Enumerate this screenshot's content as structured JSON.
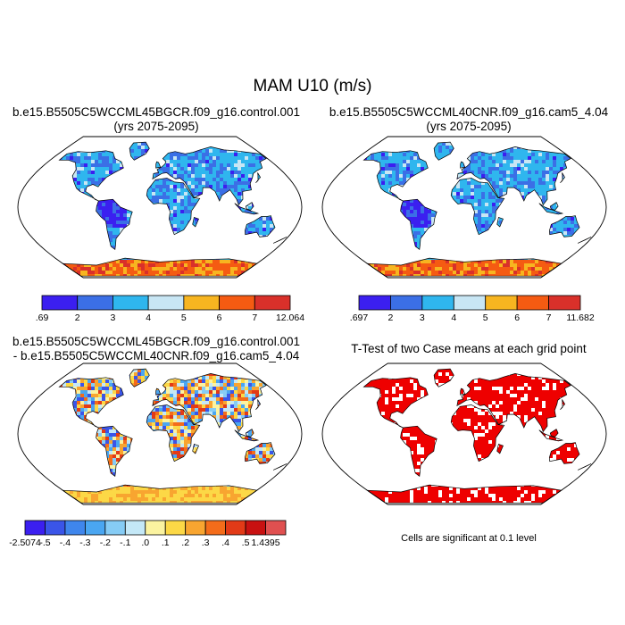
{
  "title": "MAM U10 (m/s)",
  "panels": [
    {
      "id": "control",
      "title_lines": [
        "b.e15.B5505C5WCCML45BGCR.f09_g16.control.001",
        "(yrs 2075-2095)"
      ],
      "colorbar": {
        "colors": [
          "#3b1ff0",
          "#3b6fe6",
          "#2fb6ee",
          "#c8e6f4",
          "#f7b520",
          "#f55b12",
          "#d9302a"
        ],
        "labels": [
          ".69",
          "2",
          "3",
          "4",
          "5",
          "6",
          "7",
          "12.064"
        ]
      }
    },
    {
      "id": "cam5",
      "title_lines": [
        "b.e15.B5505C5WCCML40CNR.f09_g16.cam5_4.04",
        "(yrs 2075-2095)"
      ],
      "colorbar": {
        "colors": [
          "#3b1ff0",
          "#3b6fe6",
          "#2fb6ee",
          "#c8e6f4",
          "#f7b520",
          "#f55b12",
          "#d9302a"
        ],
        "labels": [
          ".697",
          "2",
          "3",
          "4",
          "5",
          "6",
          "7",
          "11.682"
        ]
      }
    },
    {
      "id": "diff",
      "title_lines": [
        "b.e15.B5505C5WCCML45BGCR.f09_g16.control.001",
        "- b.e15.B5505C5WCCML40CNR.f09_g16.cam5_4.04"
      ],
      "colorbar": {
        "colors": [
          "#3b1ff0",
          "#3a55e8",
          "#3f86ec",
          "#4aa6f1",
          "#86ccf5",
          "#c4e8f7",
          "#fbf3a0",
          "#fcd846",
          "#f8a530",
          "#f46c1a",
          "#e23a17",
          "#c81111",
          "#e05050"
        ],
        "labels": [
          "-2.5074",
          "-.5",
          "-.4",
          "-.3",
          "-.2",
          "-.1",
          ".0",
          ".1",
          ".2",
          ".3",
          ".4",
          ".5",
          "1.4395"
        ]
      }
    },
    {
      "id": "ttest",
      "title_lines": [
        "T-Test of two Case means at each grid point"
      ],
      "note": "Cells are significant at 0.1 level"
    }
  ]
}
